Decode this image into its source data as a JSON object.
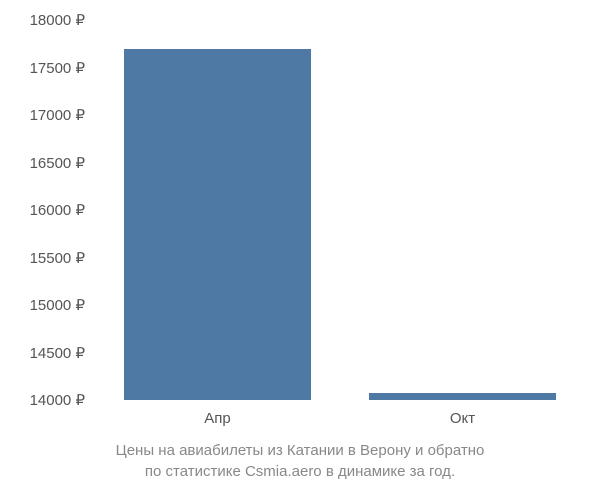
{
  "chart": {
    "type": "bar",
    "background_color": "#ffffff",
    "bar_color": "#4f79a5",
    "axis_text_color": "#555555",
    "caption_text_color": "#888888",
    "axis_fontsize": 15,
    "caption_fontsize": 15,
    "currency_symbol": "₽",
    "y_axis": {
      "min": 14000,
      "max": 18000,
      "tick_step": 500,
      "ticks": [
        {
          "value": 14000,
          "label": "14000 ₽"
        },
        {
          "value": 14500,
          "label": "14500 ₽"
        },
        {
          "value": 15000,
          "label": "15000 ₽"
        },
        {
          "value": 15500,
          "label": "15500 ₽"
        },
        {
          "value": 16000,
          "label": "16000 ₽"
        },
        {
          "value": 16500,
          "label": "16500 ₽"
        },
        {
          "value": 17000,
          "label": "17000 ₽"
        },
        {
          "value": 17500,
          "label": "17500 ₽"
        },
        {
          "value": 18000,
          "label": "18000 ₽"
        }
      ]
    },
    "x_axis": {
      "categories": [
        {
          "label": "Апр",
          "position": 0.25
        },
        {
          "label": "Окт",
          "position": 0.75
        }
      ]
    },
    "bars": [
      {
        "category": "Апр",
        "value": 17700,
        "x_center": 0.25,
        "width": 0.38
      },
      {
        "category": "Окт",
        "value": 14070,
        "x_center": 0.75,
        "width": 0.38
      }
    ],
    "caption_line1": "Цены на авиабилеты из Катании в Верону и обратно",
    "caption_line2": "по статистике Csmia.aero в динамике за год."
  }
}
